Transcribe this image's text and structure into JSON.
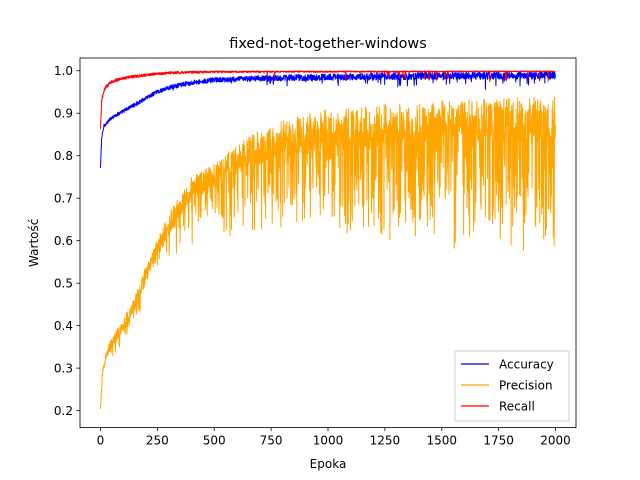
{
  "chart_data": {
    "type": "line",
    "title": "fixed-not-together-windows",
    "xlabel": "Epoka",
    "ylabel": "Wartość",
    "xlim": [
      -90,
      2090
    ],
    "ylim": [
      0.16,
      1.03
    ],
    "xticks": [
      0,
      250,
      500,
      750,
      1000,
      1250,
      1500,
      1750,
      2000
    ],
    "yticks": [
      0.2,
      0.3,
      0.4,
      0.5,
      0.6,
      0.7,
      0.8,
      0.9,
      1.0
    ],
    "xtick_labels": [
      "0",
      "250",
      "500",
      "750",
      "1000",
      "1250",
      "1500",
      "1750",
      "2000"
    ],
    "ytick_labels": [
      "0.2",
      "0.3",
      "0.4",
      "0.5",
      "0.6",
      "0.7",
      "0.8",
      "0.9",
      "1.0"
    ],
    "grid": false,
    "legend_position": "lower-right",
    "n_epochs": 2000,
    "series": [
      {
        "name": "Accuracy",
        "color": "#0000ff",
        "curve": [
          [
            0,
            0.77
          ],
          [
            5,
            0.84
          ],
          [
            15,
            0.87
          ],
          [
            50,
            0.89
          ],
          [
            100,
            0.905
          ],
          [
            150,
            0.92
          ],
          [
            200,
            0.935
          ],
          [
            250,
            0.95
          ],
          [
            300,
            0.96
          ],
          [
            400,
            0.972
          ],
          [
            500,
            0.978
          ],
          [
            700,
            0.982
          ],
          [
            1000,
            0.985
          ],
          [
            1500,
            0.988
          ],
          [
            2000,
            0.989
          ]
        ],
        "noise": [
          [
            0,
            0.004
          ],
          [
            500,
            0.006
          ],
          [
            1000,
            0.008
          ],
          [
            2000,
            0.009
          ]
        ],
        "dips": [
          [
            0,
            0.004
          ],
          [
            500,
            0.01
          ],
          [
            1000,
            0.02
          ],
          [
            2000,
            0.03
          ]
        ],
        "dip_rate": [
          [
            0,
            0.0
          ],
          [
            400,
            0.02
          ],
          [
            1000,
            0.05
          ],
          [
            2000,
            0.08
          ]
        ]
      },
      {
        "name": "Precision",
        "color": "#ffa500",
        "curve": [
          [
            0,
            0.2
          ],
          [
            10,
            0.3
          ],
          [
            40,
            0.35
          ],
          [
            100,
            0.4
          ],
          [
            150,
            0.45
          ],
          [
            200,
            0.52
          ],
          [
            250,
            0.58
          ],
          [
            300,
            0.64
          ],
          [
            350,
            0.68
          ],
          [
            400,
            0.72
          ],
          [
            500,
            0.75
          ],
          [
            600,
            0.79
          ],
          [
            700,
            0.82
          ],
          [
            800,
            0.84
          ],
          [
            1000,
            0.86
          ],
          [
            1200,
            0.87
          ],
          [
            1500,
            0.88
          ],
          [
            2000,
            0.89
          ]
        ],
        "noise": [
          [
            0,
            0.01
          ],
          [
            300,
            0.025
          ],
          [
            700,
            0.04
          ],
          [
            1000,
            0.05
          ],
          [
            2000,
            0.05
          ]
        ],
        "dips": [
          [
            0,
            0.02
          ],
          [
            300,
            0.08
          ],
          [
            600,
            0.15
          ],
          [
            1000,
            0.22
          ],
          [
            2000,
            0.28
          ]
        ],
        "dip_rate": [
          [
            0,
            0.05
          ],
          [
            500,
            0.25
          ],
          [
            1000,
            0.35
          ],
          [
            2000,
            0.4
          ]
        ]
      },
      {
        "name": "Recall",
        "color": "#ff0000",
        "curve": [
          [
            0,
            0.86
          ],
          [
            5,
            0.93
          ],
          [
            20,
            0.96
          ],
          [
            50,
            0.975
          ],
          [
            100,
            0.983
          ],
          [
            200,
            0.99
          ],
          [
            300,
            0.995
          ],
          [
            500,
            0.998
          ],
          [
            2000,
            0.999
          ]
        ],
        "noise": [
          [
            0,
            0.004
          ],
          [
            300,
            0.003
          ],
          [
            2000,
            0.001
          ]
        ],
        "dips": [
          [
            0,
            0.005
          ],
          [
            500,
            0.01
          ],
          [
            1000,
            0.02
          ],
          [
            2000,
            0.025
          ]
        ],
        "dip_rate": [
          [
            0,
            0.0
          ],
          [
            500,
            0.01
          ],
          [
            1200,
            0.03
          ],
          [
            2000,
            0.04
          ]
        ]
      }
    ]
  }
}
